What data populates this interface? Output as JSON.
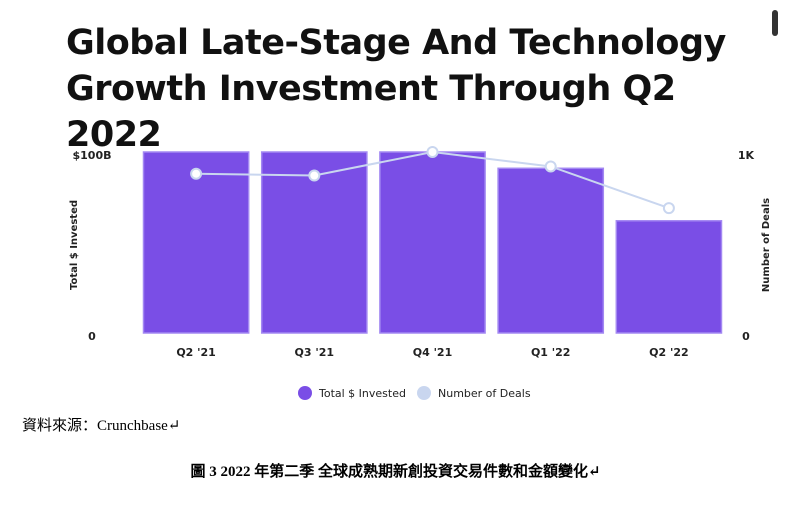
{
  "chart_data": {
    "type": "bar",
    "title": "Global Late-Stage And Technology Growth Investment Through Q2 2022",
    "categories": [
      "Q2 '21",
      "Q3 '21",
      "Q4 '21",
      "Q1 '22",
      "Q2 '22"
    ],
    "series": [
      {
        "name": "Total $ Invested",
        "type": "bar",
        "color": "#7a4ee6",
        "values": [
          100,
          100,
          100,
          91,
          62
        ]
      },
      {
        "name": "Number of Deals",
        "type": "line",
        "color": "#c9d6ef",
        "axis": "y2",
        "values": [
          880,
          870,
          1000,
          920,
          690
        ]
      }
    ],
    "ylabel": "Total $ Invested",
    "y2label": "Number of Deals",
    "ylim": [
      0,
      100
    ],
    "yticks": [
      0,
      {
        "value": 100,
        "label": "$100B"
      }
    ],
    "y2lim": [
      0,
      1000
    ],
    "y2ticks": [
      0,
      {
        "value": 1000,
        "label": "1K"
      }
    ],
    "legend": "bottom",
    "source": "資料來源：Crunchbase↵",
    "caption": "圖 3 2022 年第二季 全球成熟期新創投資交易件數和金額變化↵"
  }
}
